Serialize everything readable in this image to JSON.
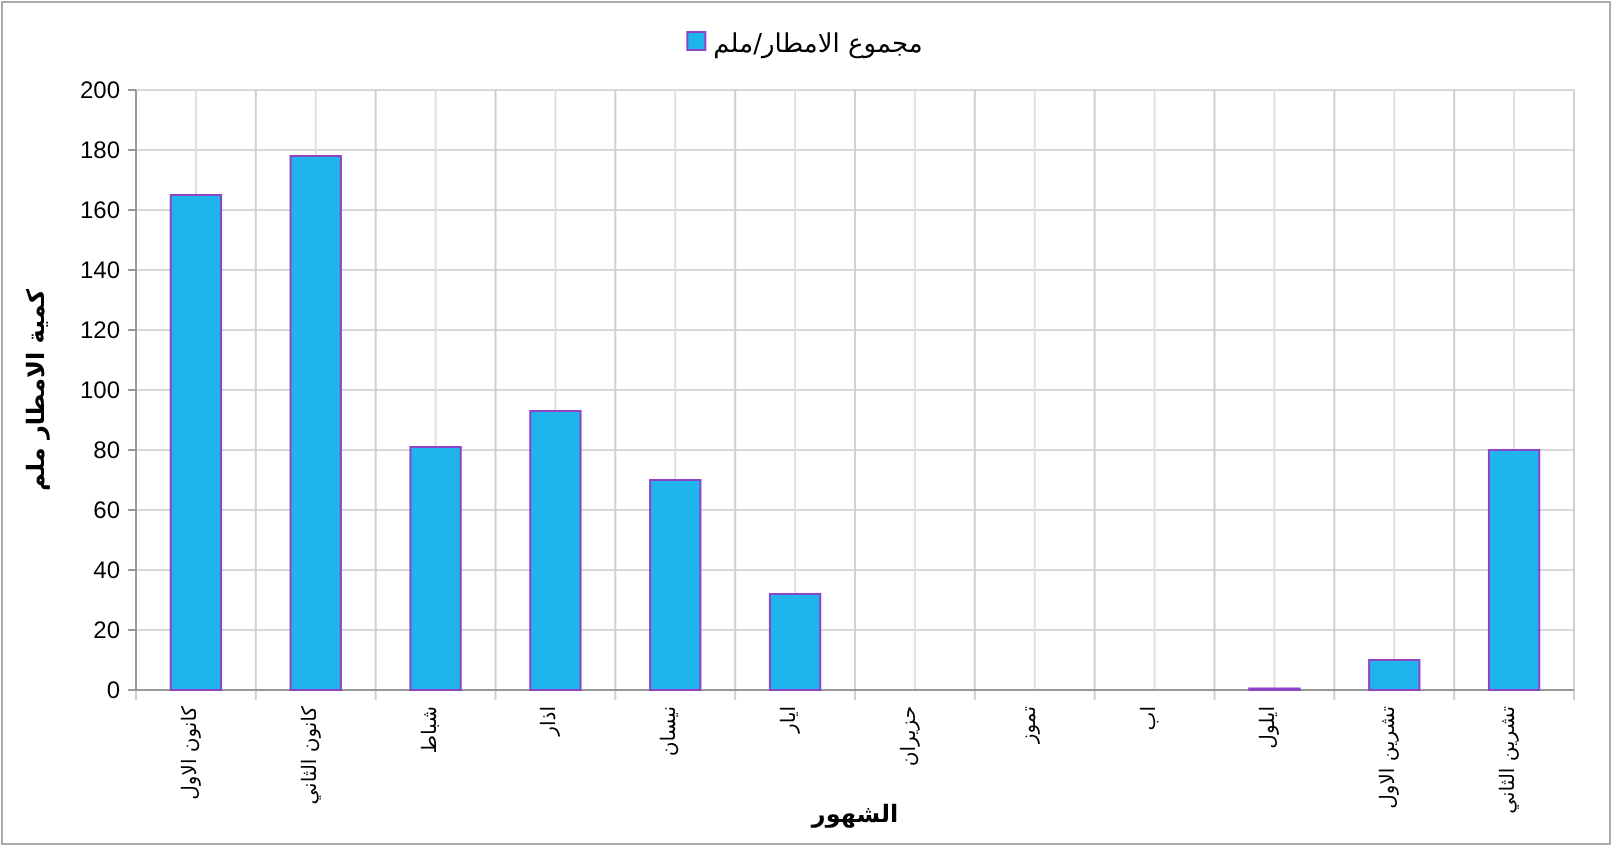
{
  "chart_data": {
    "type": "bar",
    "xlabel": "الشهور",
    "ylabel": "كمية الامطار ملم",
    "categories": [
      "كانون الاول",
      "كانون الثاني",
      "شباط",
      "اذار",
      "نيسان",
      "ايار",
      "حزيران",
      "تموز",
      "اب",
      "ايلول",
      "تشرين الاول",
      "تشرين الثاني"
    ],
    "series": [
      {
        "name": "مجموع الامطار/ملم",
        "color": "#1fb4ec",
        "values": [
          165,
          178,
          81,
          93,
          70,
          32,
          0,
          0,
          0,
          0.5,
          10,
          80
        ]
      }
    ],
    "ylim": [
      0,
      200
    ],
    "yticks": [
      0,
      20,
      40,
      60,
      80,
      100,
      120,
      140,
      160,
      180,
      200
    ],
    "grid": true,
    "legend": "top"
  }
}
